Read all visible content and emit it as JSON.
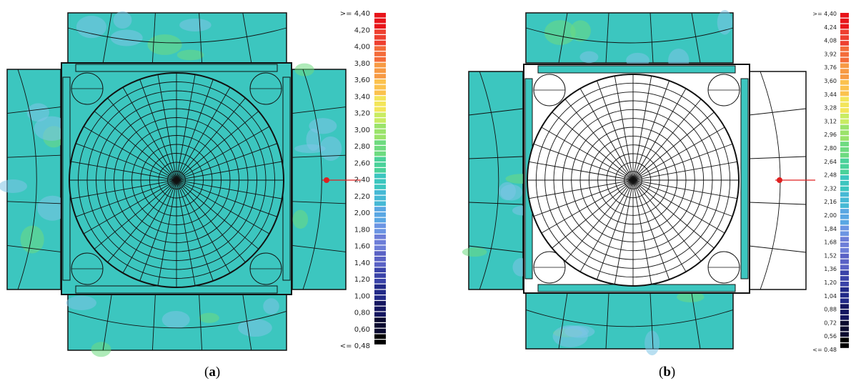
{
  "figure": {
    "panels": [
      {
        "id": "a",
        "caption_open": "(",
        "caption_letter": "a",
        "caption_close": ")",
        "scale_labels": [
          ">= 4,40",
          "4,20",
          "4,00",
          "3,80",
          "3,60",
          "3,40",
          "3,20",
          "3,00",
          "2,80",
          "2,60",
          "2,40",
          "2,20",
          "2,00",
          "1,80",
          "1,60",
          "1,40",
          "1,20",
          "1,00",
          "0,80",
          "0,60",
          "<= 0,48"
        ],
        "center_fill": "colored",
        "right_wing_fill": "colored"
      },
      {
        "id": "b",
        "caption_open": "(",
        "caption_letter": "b",
        "caption_close": ")",
        "scale_labels": [
          ">= 4,40",
          "4,24",
          "4,08",
          "3,92",
          "3,76",
          "3,60",
          "3,44",
          "3,28",
          "3,12",
          "2,96",
          "2,80",
          "2,64",
          "2,48",
          "2,32",
          "2,16",
          "2,00",
          "1,84",
          "1,68",
          "1,52",
          "1,36",
          "1,20",
          "1,04",
          "0,88",
          "0,72",
          "0,56",
          "<= 0.48"
        ],
        "center_fill": "white",
        "right_wing_fill": "white"
      }
    ],
    "colors": {
      "teal": "#3cc6bf",
      "light_blue": "#7ec4e6",
      "line": "#111111",
      "red": "#e02020",
      "scale": [
        "#e8141a",
        "#ee4030",
        "#f46c3a",
        "#f79a44",
        "#fbc24e",
        "#f3e55a",
        "#c9ec63",
        "#9be36b",
        "#6edb80",
        "#4ad29a",
        "#3cc6bf",
        "#46b9d5",
        "#5aa7e3",
        "#6c95e3",
        "#6d7ed8",
        "#5a62c5",
        "#3a43a8",
        "#222a88",
        "#141660",
        "#0a0a30",
        "#000000"
      ]
    }
  }
}
